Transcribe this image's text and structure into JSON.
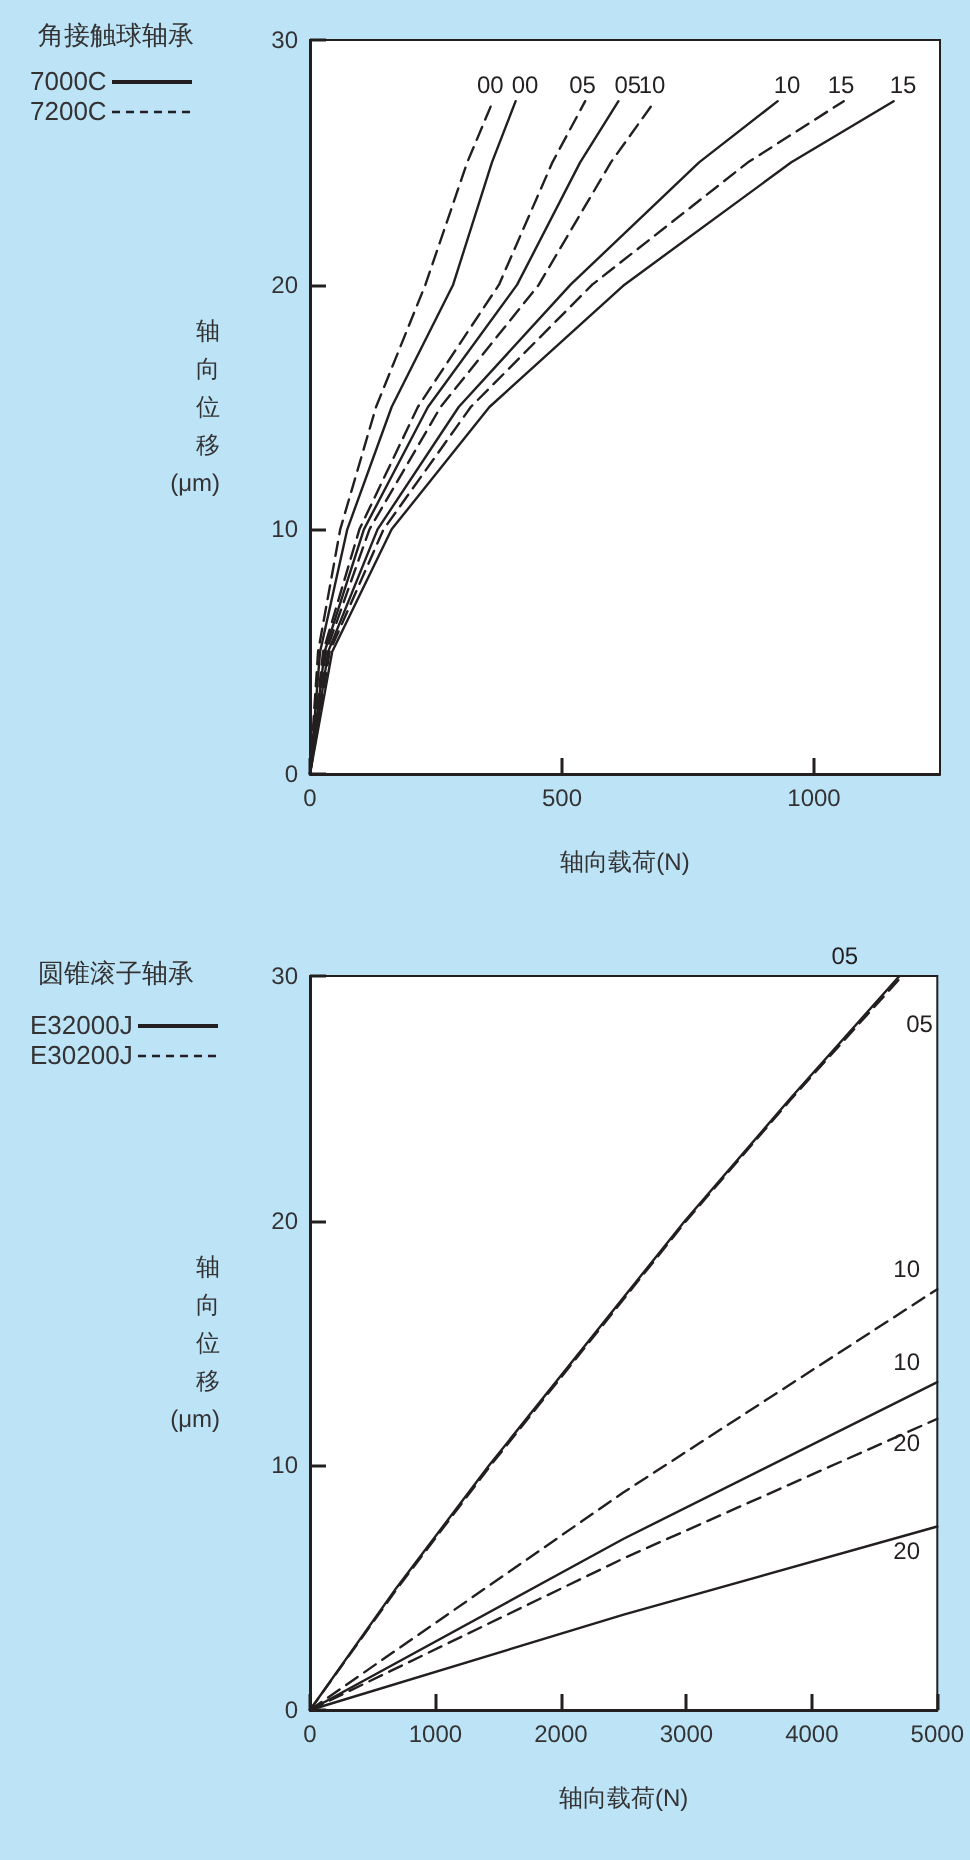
{
  "chart_data": [
    {
      "type": "line",
      "title": "角接触球轴承",
      "xlabel": "轴向载荷(N)",
      "ylabel": "轴向位移(μm)",
      "xlim": [
        0,
        1250
      ],
      "ylim": [
        0,
        30
      ],
      "xticks": [
        0,
        500,
        1000
      ],
      "yticks": [
        0,
        10,
        20,
        30
      ],
      "grid": false,
      "legend": false,
      "marker": "none",
      "annotations": [
        "7000C",
        "7200C"
      ],
      "series": [
        {
          "name": "00",
          "color": "#231f20",
          "line_style": "solid",
          "x": [
            0,
            20,
            74,
            162,
            284,
            361,
            408
          ],
          "values": [
            0,
            5,
            10,
            15,
            20,
            25,
            27.5
          ]
        },
        {
          "name": "00",
          "color": "#231f20",
          "line_style": "dashed",
          "x": [
            0,
            16,
            60,
            131,
            229,
            312,
            363
          ],
          "values": [
            0,
            5,
            10,
            15,
            20,
            25,
            27.5
          ]
        },
        {
          "name": "05",
          "color": "#231f20",
          "line_style": "solid",
          "x": [
            0,
            29,
            107,
            234,
            411,
            536,
            612
          ],
          "values": [
            0,
            5,
            10,
            15,
            20,
            25,
            27.5
          ]
        },
        {
          "name": "05",
          "color": "#231f20",
          "line_style": "dashed",
          "x": [
            0,
            26,
            98,
            214,
            375,
            481,
            546
          ],
          "values": [
            0,
            5,
            10,
            15,
            20,
            25,
            27.5
          ]
        },
        {
          "name": "10",
          "color": "#231f20",
          "line_style": "solid",
          "x": [
            0,
            36,
            134,
            295,
            517,
            772,
            928
          ],
          "values": [
            0,
            5,
            10,
            15,
            20,
            25,
            27.5
          ]
        },
        {
          "name": "10",
          "color": "#231f20",
          "line_style": "dashed",
          "x": [
            0,
            32,
            118,
            259,
            454,
            597,
            684
          ],
          "values": [
            0,
            5,
            10,
            15,
            20,
            25,
            27.5
          ]
        },
        {
          "name": "15",
          "color": "#231f20",
          "line_style": "solid",
          "x": [
            0,
            44,
            162,
            356,
            624,
            955,
            1158
          ],
          "values": [
            0,
            5,
            10,
            15,
            20,
            25,
            27.5
          ]
        },
        {
          "name": "15",
          "color": "#231f20",
          "line_style": "dashed",
          "x": [
            0,
            39,
            146,
            319,
            560,
            869,
            1059
          ],
          "values": [
            0,
            5,
            10,
            15,
            20,
            25,
            27.5
          ]
        }
      ]
    },
    {
      "type": "line",
      "title": "圆锥滚子轴承",
      "xlabel": "轴向载荷(N)",
      "ylabel": "轴向位移(μm)",
      "xlim": [
        0,
        5000
      ],
      "ylim": [
        0,
        30
      ],
      "xticks": [
        0,
        1000,
        2000,
        3000,
        4000,
        5000
      ],
      "yticks": [
        0,
        10,
        20,
        30
      ],
      "grid": false,
      "legend": false,
      "marker": "none",
      "annotations": [
        "E32000J",
        "E30200J"
      ],
      "series": [
        {
          "name": "05",
          "color": "#231f20",
          "line_style": "solid",
          "x": [
            0,
            690,
            1428,
            2989,
            3830,
            4698
          ],
          "values": [
            0,
            5,
            10,
            20,
            25,
            30
          ]
        },
        {
          "name": "05",
          "color": "#231f20",
          "line_style": "dashed",
          "x": [
            0,
            700,
            1440,
            3000,
            3840,
            4720
          ],
          "values": [
            0,
            5,
            10,
            20,
            25,
            30
          ]
        },
        {
          "name": "10",
          "color": "#231f20",
          "line_style": "solid",
          "x": [
            0,
            2500,
            5000
          ],
          "values": [
            0,
            7.0,
            13.4
          ]
        },
        {
          "name": "10",
          "color": "#231f20",
          "line_style": "dashed",
          "x": [
            0,
            2500,
            5000
          ],
          "values": [
            0,
            8.9,
            17.2
          ]
        },
        {
          "name": "20",
          "color": "#231f20",
          "line_style": "solid",
          "x": [
            0,
            2500,
            5000
          ],
          "values": [
            0,
            3.9,
            7.5
          ]
        },
        {
          "name": "20",
          "color": "#231f20",
          "line_style": "dashed",
          "x": [
            0,
            2500,
            5000
          ],
          "values": [
            0,
            6.2,
            11.9
          ]
        }
      ]
    }
  ]
}
